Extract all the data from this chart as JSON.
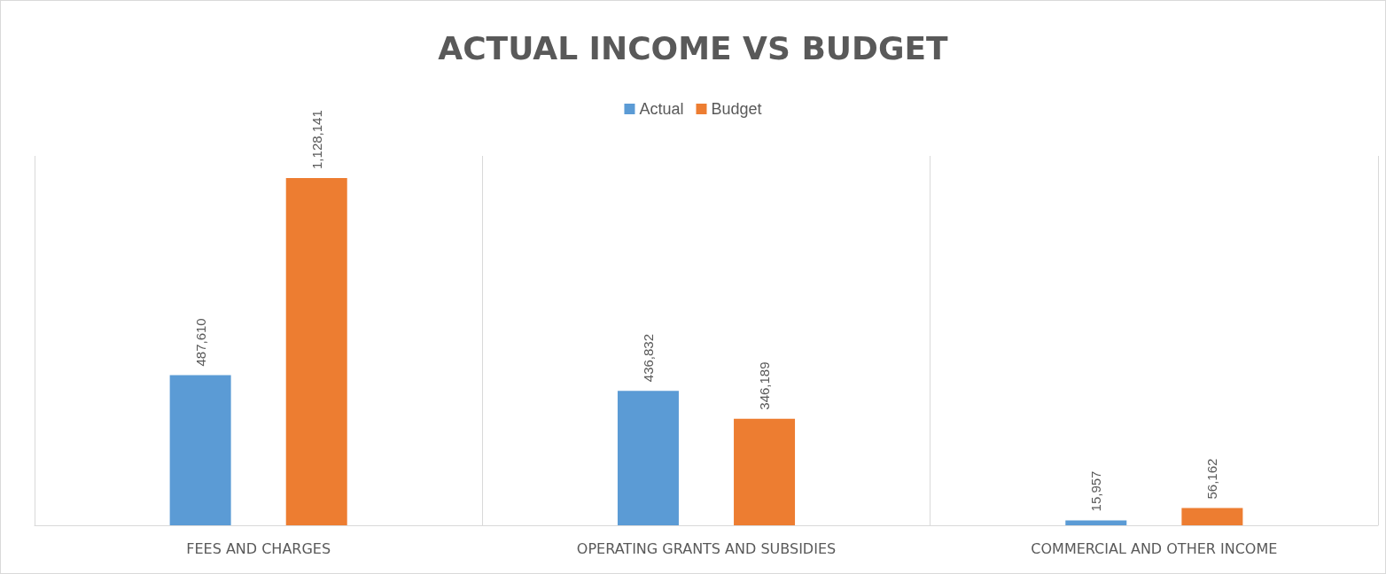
{
  "chart_data": {
    "type": "bar",
    "title": "ACTUAL INCOME VS BUDGET",
    "categories": [
      "FEES AND CHARGES",
      "OPERATING GRANTS AND SUBSIDIES",
      "COMMERCIAL AND OTHER INCOME"
    ],
    "series": [
      {
        "name": "Actual",
        "color": "#5b9bd5",
        "values": [
          487610,
          436832,
          15957
        ],
        "value_labels": [
          "487,610",
          "436,832",
          "15,957"
        ]
      },
      {
        "name": "Budget",
        "color": "#ed7d31",
        "values": [
          1128141,
          346189,
          56162
        ],
        "value_labels": [
          "1,128,141",
          "346,189",
          "56,162"
        ]
      }
    ],
    "legend": "top",
    "grid": "x"
  }
}
